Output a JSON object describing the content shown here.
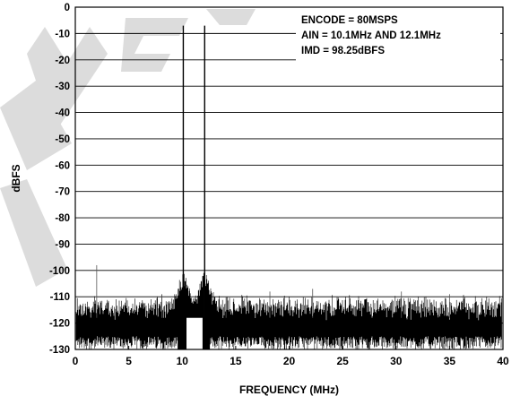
{
  "chart_data": {
    "type": "line",
    "title": "",
    "xlabel": "FREQUENCY (MHz)",
    "ylabel": "dBFS",
    "xlim": [
      0,
      40
    ],
    "ylim": [
      -130,
      0
    ],
    "xticks": [
      0,
      5,
      10,
      15,
      20,
      25,
      30,
      35,
      40
    ],
    "yticks": [
      0,
      -10,
      -20,
      -30,
      -40,
      -50,
      -60,
      -70,
      -80,
      -90,
      -100,
      -110,
      -120,
      -130
    ],
    "grid": "horizontal",
    "annotations": [
      "ENCODE = 80MSPS",
      "AIN = 10.1MHz AND 12.1MHz",
      "IMD = 98.25dBFS"
    ],
    "series": [
      {
        "tones": [
          {
            "x": 10.1,
            "y": -7
          },
          {
            "x": 12.1,
            "y": -7
          }
        ],
        "noise_floor": {
          "y_min": -130,
          "y_max": -113,
          "typical": -119
        },
        "spurs": [
          {
            "x": 2.0,
            "y": -98
          },
          {
            "x": 10.1,
            "y": -97
          },
          {
            "x": 12.1,
            "y": -93
          },
          {
            "x": 14.1,
            "y": -110
          },
          {
            "x": 8.1,
            "y": -109
          },
          {
            "x": 18.2,
            "y": -108
          },
          {
            "x": 22.2,
            "y": -107
          },
          {
            "x": 30.5,
            "y": -108
          },
          {
            "x": 35.0,
            "y": -109
          }
        ]
      }
    ]
  },
  "watermark": "OBSOLETE"
}
